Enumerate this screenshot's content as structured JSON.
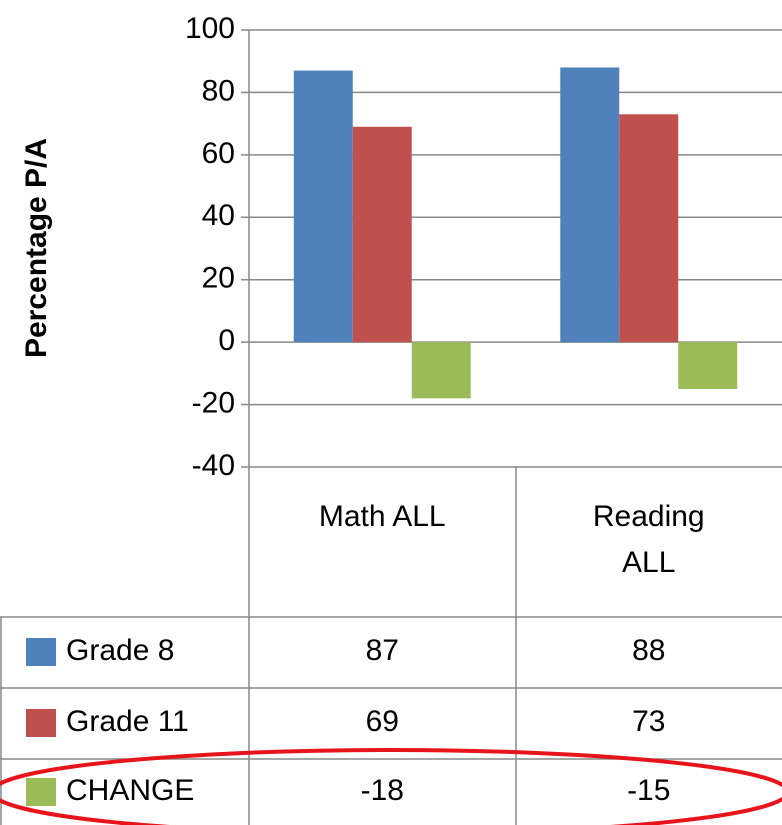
{
  "chart_data": {
    "type": "bar",
    "y_label": "Percentage P/A",
    "categories": [
      "Math ALL",
      "Reading ALL"
    ],
    "series": [
      {
        "name": "Grade 8",
        "color": "#4f81bd",
        "values": [
          87,
          88
        ]
      },
      {
        "name": "Grade 11",
        "color": "#c0504d",
        "values": [
          69,
          73
        ]
      },
      {
        "name": "CHANGE",
        "color": "#9bbb59",
        "values": [
          -18,
          -15
        ]
      }
    ],
    "ylim": [
      -40,
      100
    ],
    "yticks": [
      -40,
      -20,
      0,
      20,
      40,
      60,
      80,
      100
    ],
    "grid": true
  }
}
